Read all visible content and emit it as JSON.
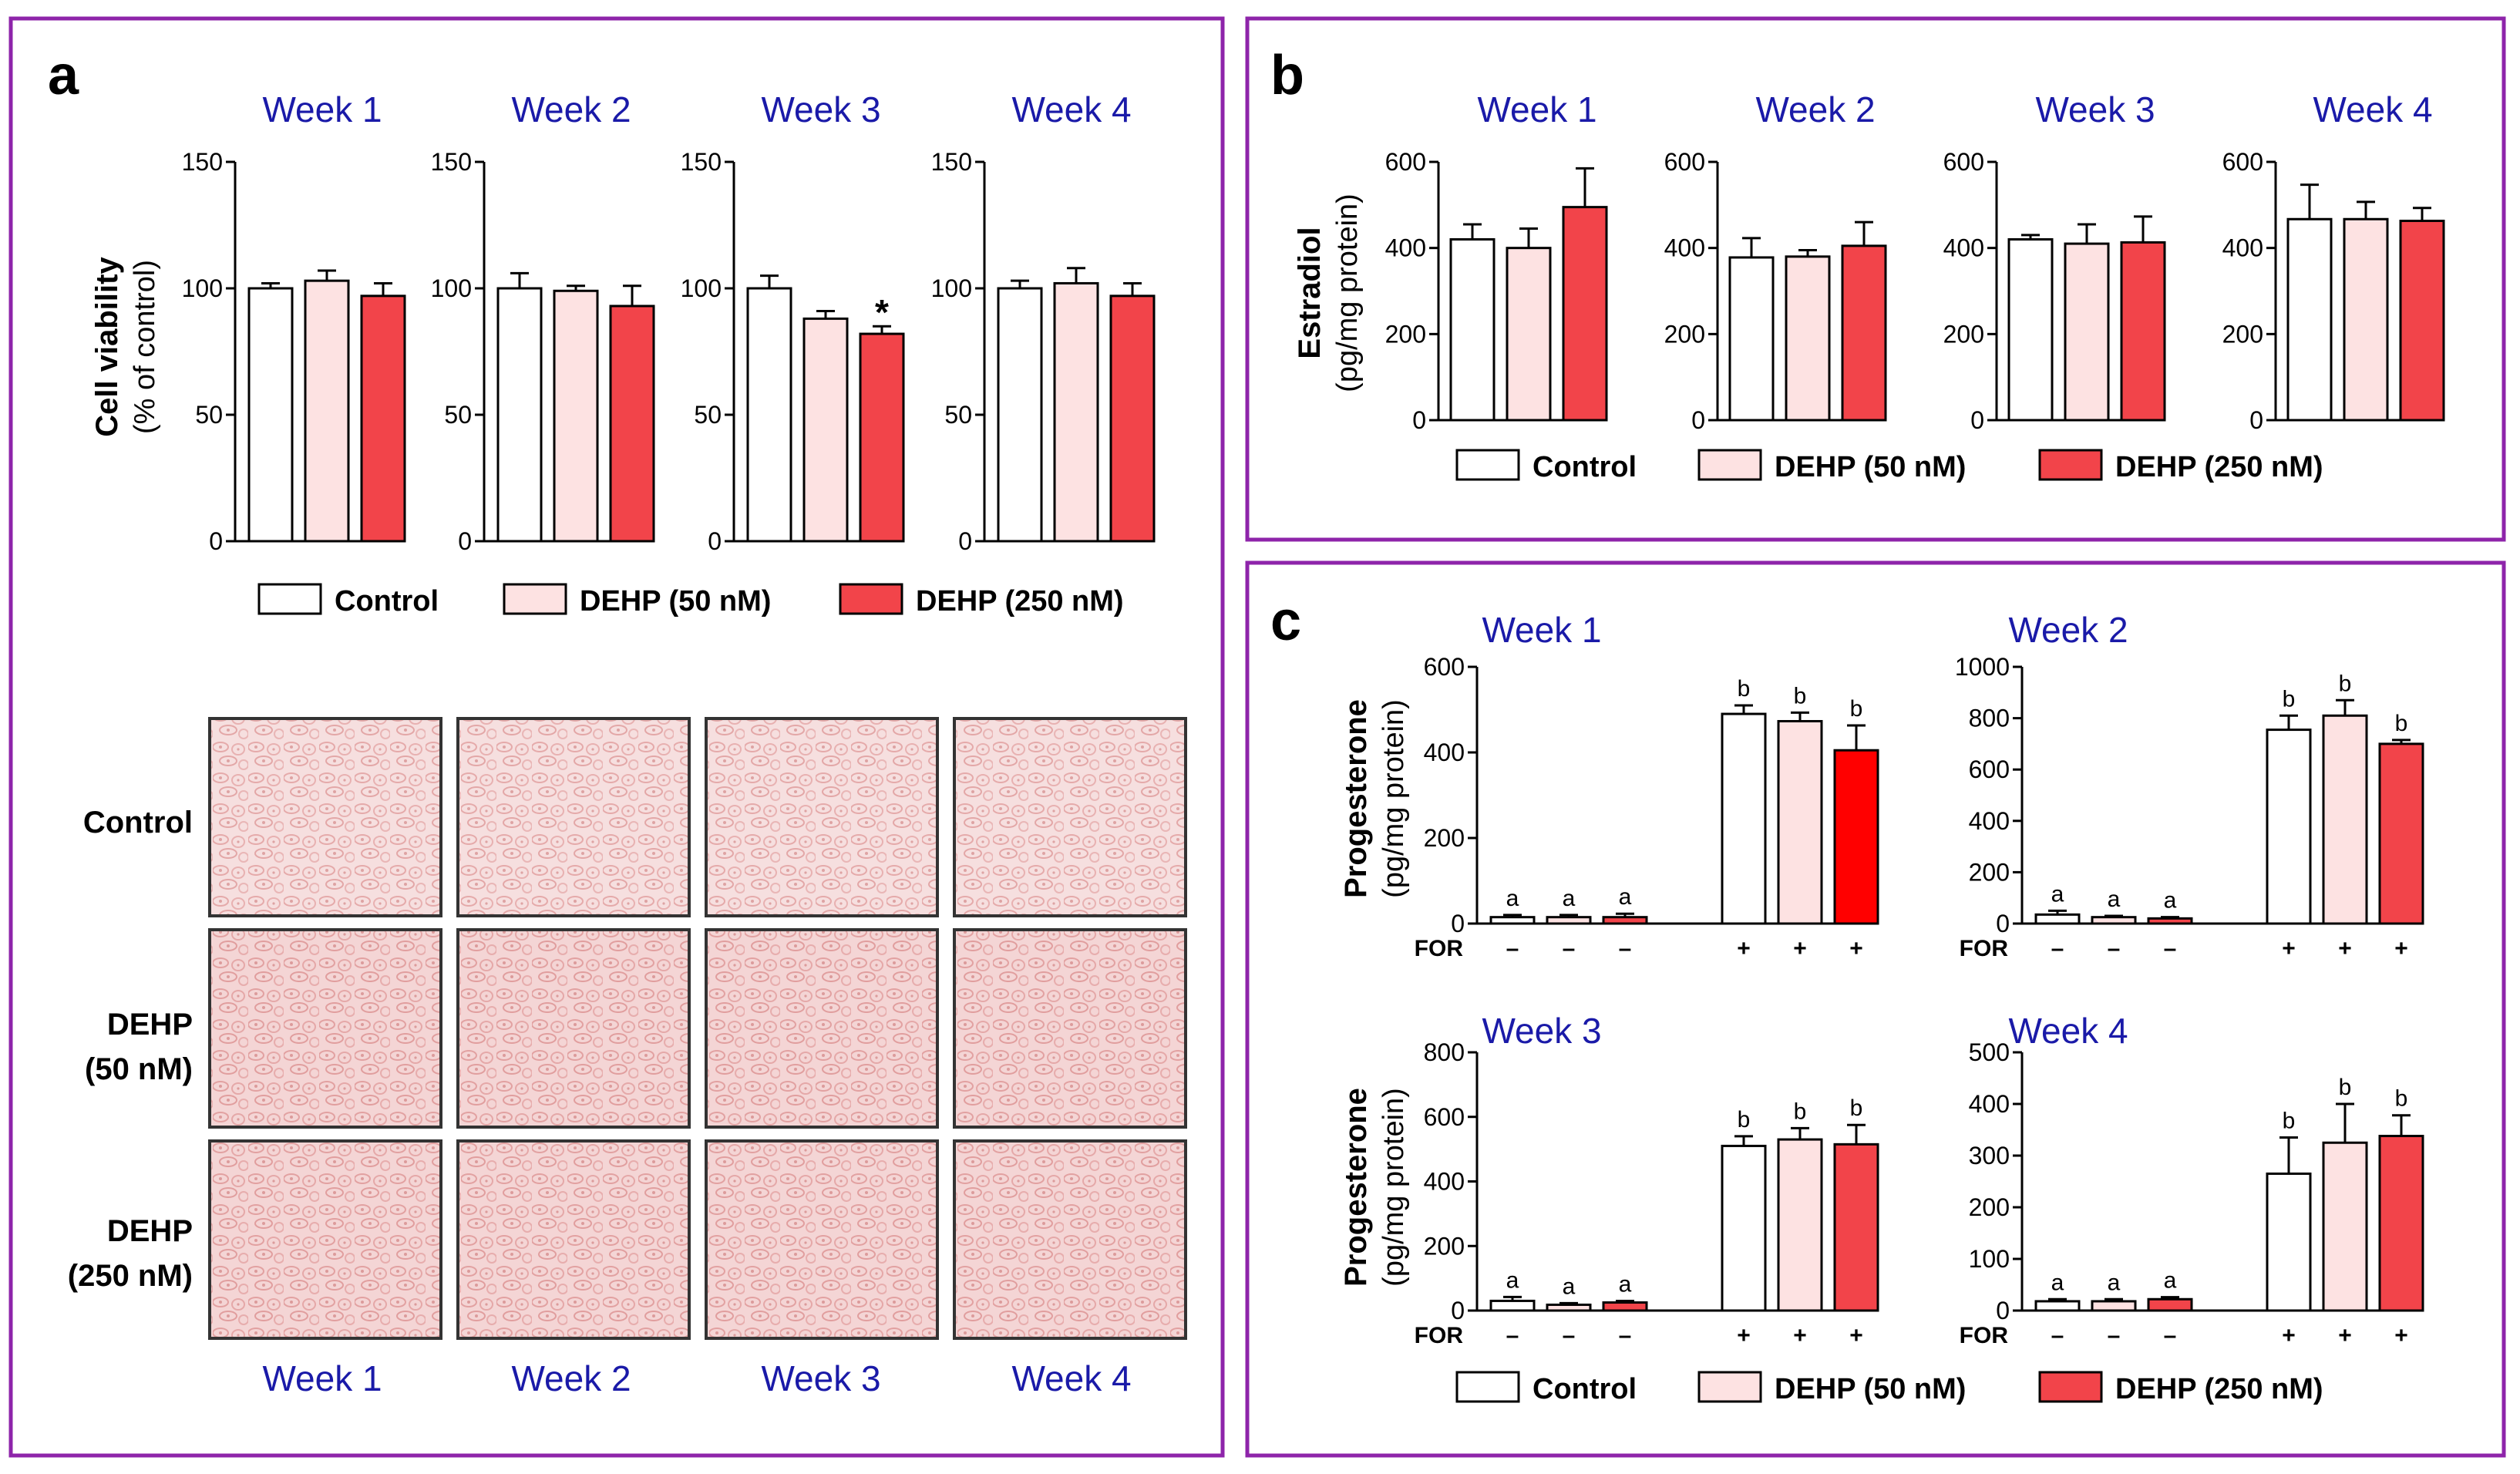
{
  "panels": {
    "a": {
      "letter": "a",
      "weeks": [
        "Week 1",
        "Week 2",
        "Week 3",
        "Week 4"
      ],
      "ylabel": "Cell viability",
      "ylabel_sub": "(% of control)",
      "row_labels": [
        [
          "Control"
        ],
        [
          "DEHP",
          "(50 nM)"
        ],
        [
          "DEHP",
          "(250 nM)"
        ]
      ],
      "legend": [
        "Control",
        "DEHP (50 nM)",
        "DEHP (250 nM)"
      ]
    },
    "b": {
      "letter": "b",
      "ylabel": "Estradiol",
      "ylabel_sub": "(pg/mg protein)",
      "legend": [
        "Control",
        "DEHP (50 nM)",
        "DEHP (250 nM)"
      ]
    },
    "c": {
      "letter": "c",
      "ylabel": "Progesterone",
      "ylabel_sub": "(pg/mg protein)",
      "for_label": "FOR",
      "for_signs": [
        "–",
        "–",
        "–",
        "+",
        "+",
        "+"
      ],
      "legend": [
        "Control",
        "DEHP (50 nM)",
        "DEHP (250 nM)"
      ]
    }
  },
  "colors": {
    "frame": "#8e24aa",
    "week_title": "#1a1aa8",
    "control": "#ffffff",
    "dehp50": "#fde2e2",
    "dehp250": "#f2444a",
    "dehp250_alt": "#ff0000",
    "photo_base": "#f6dddd",
    "photo_cell": "#e7a8a8"
  },
  "chart_data": [
    {
      "type": "bar",
      "id": "a-week1",
      "title": "Week 1",
      "ylabel": "Cell viability (% of control)",
      "categories": [
        "Control",
        "DEHP (50 nM)",
        "DEHP (250 nM)"
      ],
      "values": [
        100,
        103,
        97
      ],
      "errors": [
        2,
        4,
        5
      ],
      "ylim": [
        0,
        150
      ],
      "yticks": [
        0,
        50,
        100,
        150
      ]
    },
    {
      "type": "bar",
      "id": "a-week2",
      "title": "Week 2",
      "ylabel": "Cell viability (% of control)",
      "categories": [
        "Control",
        "DEHP (50 nM)",
        "DEHP (250 nM)"
      ],
      "values": [
        100,
        99,
        93
      ],
      "errors": [
        6,
        2,
        8
      ],
      "ylim": [
        0,
        150
      ],
      "yticks": [
        0,
        50,
        100,
        150
      ]
    },
    {
      "type": "bar",
      "id": "a-week3",
      "title": "Week 3",
      "ylabel": "Cell viability (% of control)",
      "categories": [
        "Control",
        "DEHP (50 nM)",
        "DEHP (250 nM)"
      ],
      "values": [
        100,
        88,
        82
      ],
      "errors": [
        5,
        3,
        3
      ],
      "labels": [
        "",
        "",
        "*"
      ],
      "ylim": [
        0,
        150
      ],
      "yticks": [
        0,
        50,
        100,
        150
      ]
    },
    {
      "type": "bar",
      "id": "a-week4",
      "title": "Week 4",
      "ylabel": "Cell viability (% of control)",
      "categories": [
        "Control",
        "DEHP (50 nM)",
        "DEHP (250 nM)"
      ],
      "values": [
        100,
        102,
        97
      ],
      "errors": [
        3,
        6,
        5
      ],
      "ylim": [
        0,
        150
      ],
      "yticks": [
        0,
        50,
        100,
        150
      ]
    },
    {
      "type": "bar",
      "id": "b-week1",
      "title": "Week 1",
      "ylabel": "Estradiol (pg/mg protein)",
      "categories": [
        "Control",
        "DEHP (50 nM)",
        "DEHP (250 nM)"
      ],
      "values": [
        420,
        400,
        495
      ],
      "errors": [
        35,
        45,
        90
      ],
      "ylim": [
        0,
        600
      ],
      "yticks": [
        0,
        200,
        400,
        600
      ]
    },
    {
      "type": "bar",
      "id": "b-week2",
      "title": "Week 2",
      "ylabel": "Estradiol (pg/mg protein)",
      "categories": [
        "Control",
        "DEHP (50 nM)",
        "DEHP (250 nM)"
      ],
      "values": [
        378,
        380,
        405
      ],
      "errors": [
        45,
        15,
        55
      ],
      "ylim": [
        0,
        600
      ],
      "yticks": [
        0,
        200,
        400,
        600
      ]
    },
    {
      "type": "bar",
      "id": "b-week3",
      "title": "Week 3",
      "ylabel": "Estradiol (pg/mg protein)",
      "categories": [
        "Control",
        "DEHP (50 nM)",
        "DEHP (250 nM)"
      ],
      "values": [
        420,
        410,
        413
      ],
      "errors": [
        10,
        45,
        60
      ],
      "ylim": [
        0,
        600
      ],
      "yticks": [
        0,
        200,
        400,
        600
      ]
    },
    {
      "type": "bar",
      "id": "b-week4",
      "title": "Week 4",
      "ylabel": "Estradiol (pg/mg protein)",
      "categories": [
        "Control",
        "DEHP (50 nM)",
        "DEHP (250 nM)"
      ],
      "values": [
        467,
        467,
        463
      ],
      "errors": [
        80,
        40,
        30
      ],
      "ylim": [
        0,
        600
      ],
      "yticks": [
        0,
        200,
        400,
        600
      ]
    },
    {
      "type": "bar",
      "id": "c-week1",
      "title": "Week 1",
      "ylabel": "Progesterone (pg/mg protein)",
      "categories": [
        "Control",
        "DEHP (50 nM)",
        "DEHP (250 nM)",
        "Control",
        "DEHP (50 nM)",
        "DEHP (250 nM)"
      ],
      "FOR": [
        "–",
        "–",
        "–",
        "+",
        "+",
        "+"
      ],
      "values": [
        15,
        15,
        15,
        490,
        473,
        405
      ],
      "errors": [
        5,
        5,
        8,
        20,
        20,
        58
      ],
      "labels": [
        "a",
        "a",
        "a",
        "b",
        "b",
        "b"
      ],
      "ylim": [
        0,
        600
      ],
      "yticks": [
        0,
        200,
        400,
        600
      ]
    },
    {
      "type": "bar",
      "id": "c-week2",
      "title": "Week 2",
      "ylabel": "Progesterone (pg/mg protein)",
      "categories": [
        "Control",
        "DEHP (50 nM)",
        "DEHP (250 nM)",
        "Control",
        "DEHP (50 nM)",
        "DEHP (250 nM)"
      ],
      "FOR": [
        "–",
        "–",
        "–",
        "+",
        "+",
        "+"
      ],
      "values": [
        35,
        25,
        20,
        755,
        810,
        700
      ],
      "errors": [
        15,
        5,
        5,
        55,
        60,
        15
      ],
      "labels": [
        "a",
        "a",
        "a",
        "b",
        "b",
        "b"
      ],
      "ylim": [
        0,
        1000
      ],
      "yticks": [
        0,
        200,
        400,
        600,
        800,
        1000
      ]
    },
    {
      "type": "bar",
      "id": "c-week3",
      "title": "Week 3",
      "ylabel": "Progesterone (pg/mg protein)",
      "categories": [
        "Control",
        "DEHP (50 nM)",
        "DEHP (250 nM)",
        "Control",
        "DEHP (50 nM)",
        "DEHP (250 nM)"
      ],
      "FOR": [
        "–",
        "–",
        "–",
        "+",
        "+",
        "+"
      ],
      "values": [
        30,
        18,
        25,
        510,
        530,
        515
      ],
      "errors": [
        12,
        5,
        5,
        30,
        35,
        60
      ],
      "labels": [
        "a",
        "a",
        "a",
        "b",
        "b",
        "b"
      ],
      "ylim": [
        0,
        800
      ],
      "yticks": [
        0,
        200,
        400,
        600,
        800
      ]
    },
    {
      "type": "bar",
      "id": "c-week4",
      "title": "Week 4",
      "ylabel": "Progesterone (pg/mg protein)",
      "categories": [
        "Control",
        "DEHP (50 nM)",
        "DEHP (250 nM)",
        "Control",
        "DEHP (50 nM)",
        "DEHP (250 nM)"
      ],
      "FOR": [
        "–",
        "–",
        "–",
        "+",
        "+",
        "+"
      ],
      "values": [
        18,
        18,
        22,
        265,
        325,
        338
      ],
      "errors": [
        4,
        4,
        4,
        70,
        75,
        40
      ],
      "labels": [
        "a",
        "a",
        "a",
        "b",
        "b",
        "b"
      ],
      "ylim": [
        0,
        500
      ],
      "yticks": [
        0,
        100,
        200,
        300,
        400,
        500
      ]
    }
  ]
}
